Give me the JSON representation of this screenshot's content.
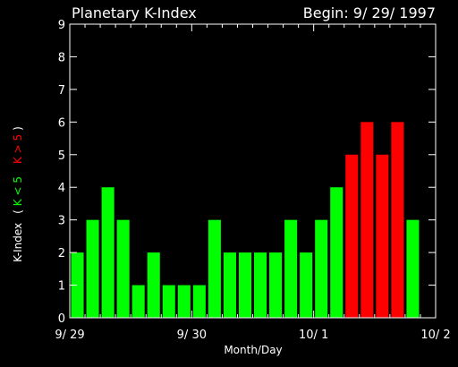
{
  "chart_data": {
    "type": "bar",
    "title": "Planetary K-Index",
    "subtitle": "Begin: 9/ 29/ 1997",
    "xlabel": "Month/Day",
    "ylabel": {
      "main": "K-Index",
      "paren_open": "(",
      "green_label": "K < 5",
      "red_label": "K > 5",
      "paren_close": ")"
    },
    "ylim": [
      0,
      9
    ],
    "yticks": [
      "0",
      "1",
      "2",
      "3",
      "4",
      "5",
      "6",
      "7",
      "8",
      "9"
    ],
    "xlim": [
      0,
      24
    ],
    "xticks": [
      {
        "label": "9/ 29",
        "x": 0
      },
      {
        "label": "9/ 30",
        "x": 8
      },
      {
        "label": "10/ 1",
        "x": 16
      },
      {
        "label": "10/ 2",
        "x": 24
      }
    ],
    "values": [
      2,
      3,
      4,
      3,
      1,
      2,
      1,
      1,
      1,
      3,
      2,
      2,
      2,
      2,
      3,
      2,
      3,
      4,
      5,
      6,
      5,
      6,
      3
    ],
    "threshold": 5,
    "colors": {
      "low": "#00ff00",
      "high": "#ff0000",
      "axis": "#ffffff",
      "text": "#ffffff",
      "background": "#000000"
    }
  }
}
